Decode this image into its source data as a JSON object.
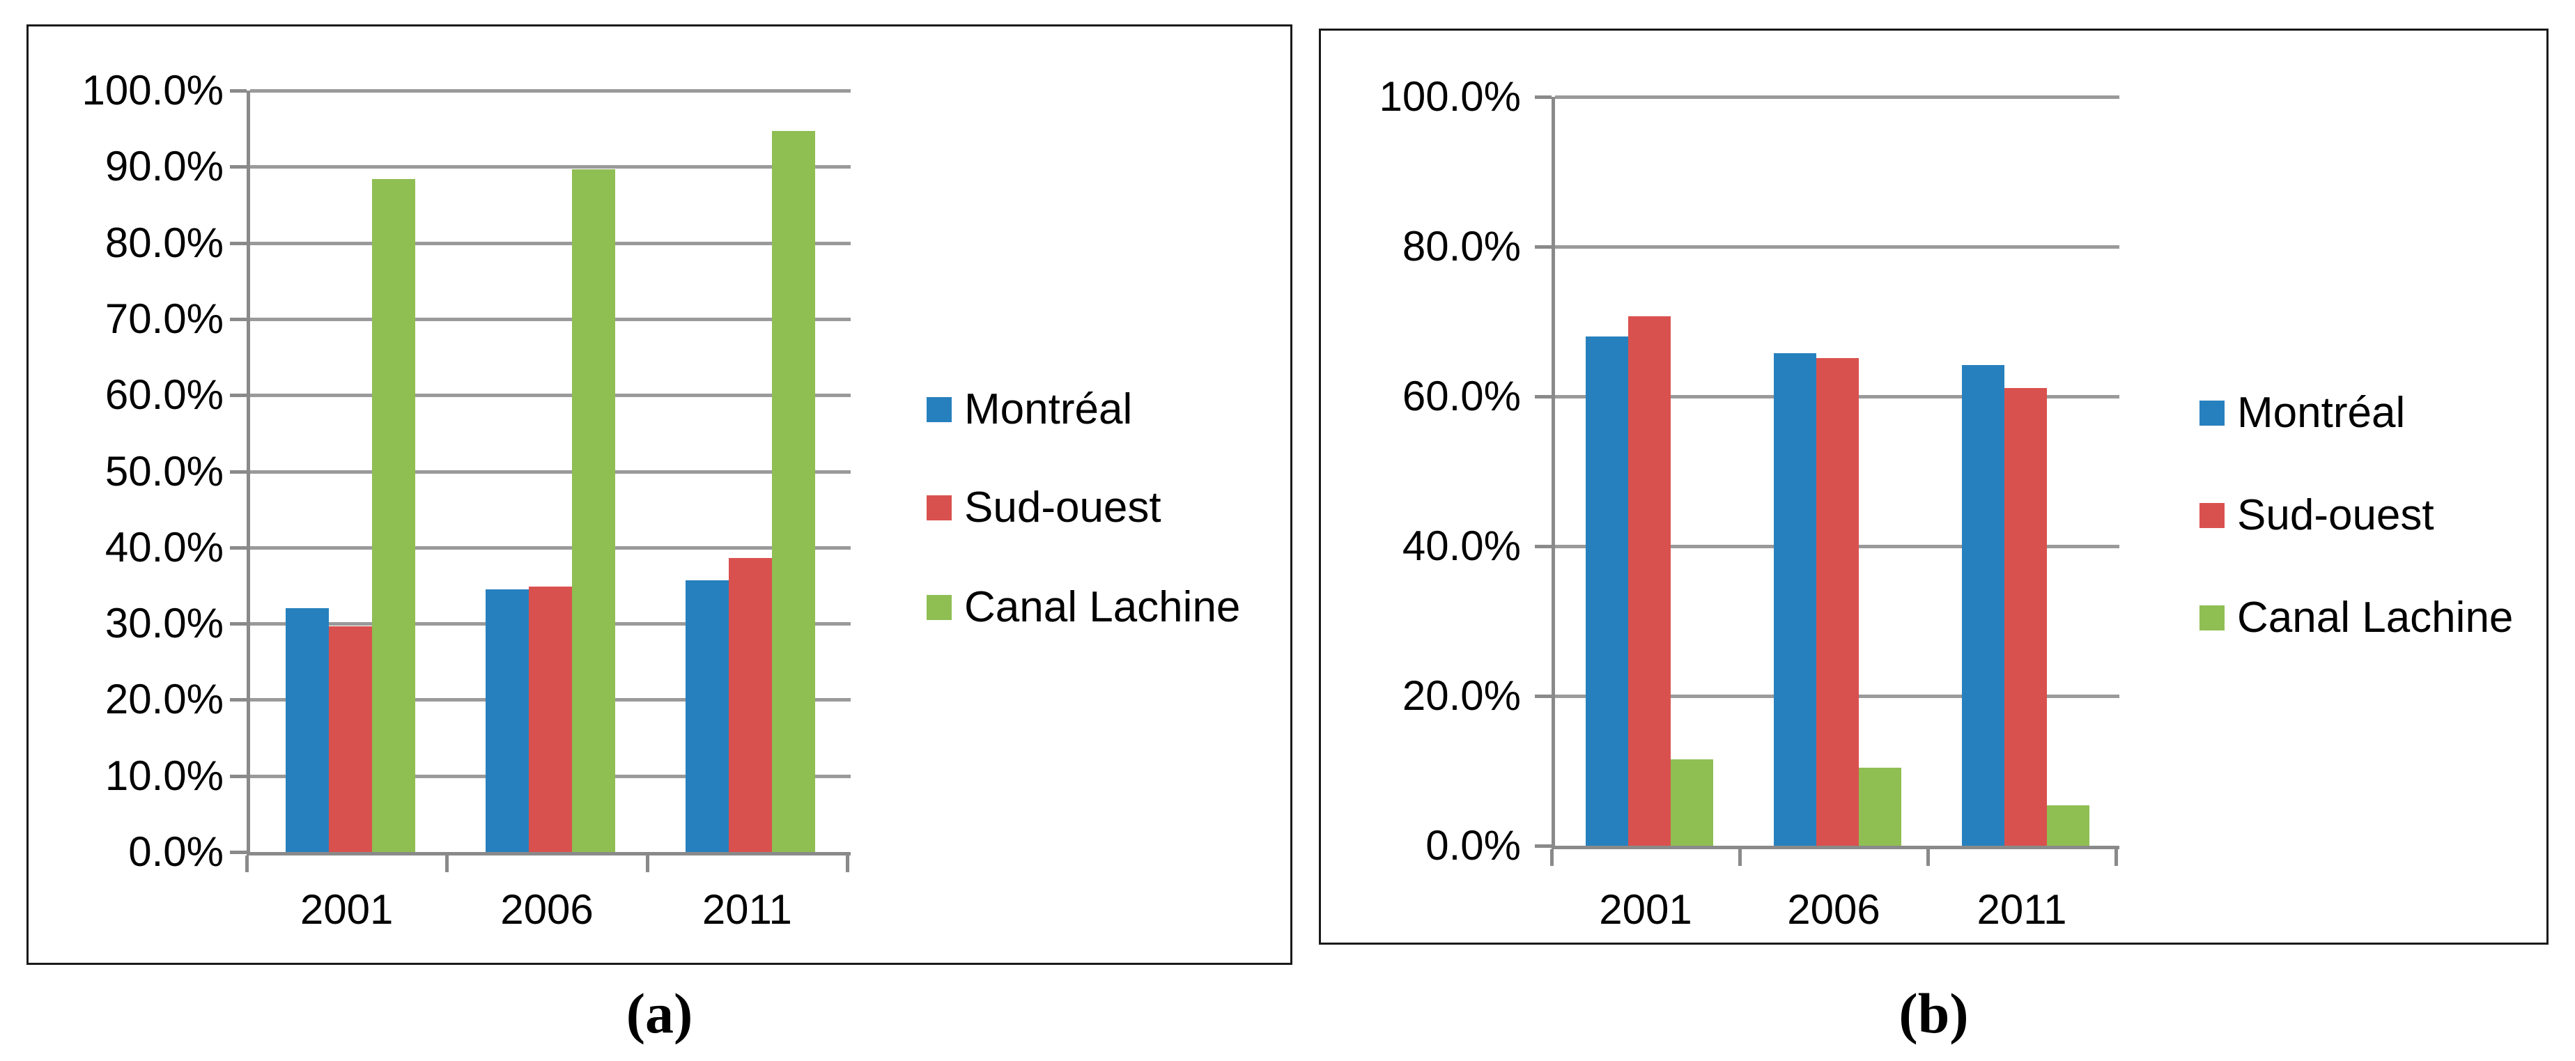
{
  "figure": {
    "background": "#ffffff",
    "text_color": "#000000",
    "panel_border_color": "#1a1a1a",
    "gridline_color": "#9a9a9a",
    "axis_color": "#8a8a8a"
  },
  "legend": {
    "position": "right",
    "items": [
      {
        "label": "Montréal",
        "color": "#2780be",
        "marker": "square-swatch-icon"
      },
      {
        "label": "Sud-ouest",
        "color": "#d9514e",
        "marker": "square-swatch-icon"
      },
      {
        "label": "Canal Lachine",
        "color": "#8fbe53",
        "marker": "square-swatch-icon"
      }
    ]
  },
  "chart_data": [
    {
      "id": "a",
      "type": "bar",
      "caption": "(a)",
      "title": "",
      "xlabel": "",
      "ylabel": "",
      "categories": [
        "2001",
        "2006",
        "2011"
      ],
      "series": [
        {
          "name": "Montréal",
          "color": "#2780be",
          "values": [
            32.0,
            34.5,
            35.7
          ]
        },
        {
          "name": "Sud-ouest",
          "color": "#d9514e",
          "values": [
            29.6,
            34.9,
            38.6
          ]
        },
        {
          "name": "Canal Lachine",
          "color": "#8fbe53",
          "values": [
            88.4,
            89.7,
            94.7
          ]
        }
      ],
      "ylim": [
        0,
        100
      ],
      "ytick_step": 10,
      "ytick_format": "percent_one_decimal",
      "ytick_labels": [
        "0.0%",
        "10.0%",
        "20.0%",
        "30.0%",
        "40.0%",
        "50.0%",
        "60.0%",
        "70.0%",
        "80.0%",
        "90.0%",
        "100.0%"
      ],
      "grid": true,
      "legend_position": "right"
    },
    {
      "id": "b",
      "type": "bar",
      "caption": "(b)",
      "title": "",
      "xlabel": "",
      "ylabel": "",
      "categories": [
        "2001",
        "2006",
        "2011"
      ],
      "series": [
        {
          "name": "Montréal",
          "color": "#2780be",
          "values": [
            68.0,
            65.8,
            64.2
          ]
        },
        {
          "name": "Sud-ouest",
          "color": "#d9514e",
          "values": [
            70.7,
            65.1,
            61.1
          ]
        },
        {
          "name": "Canal Lachine",
          "color": "#8fbe53",
          "values": [
            11.5,
            10.4,
            5.4
          ]
        }
      ],
      "ylim": [
        0,
        100
      ],
      "ytick_step": 20,
      "ytick_format": "percent_one_decimal",
      "ytick_labels": [
        "0.0%",
        "20.0%",
        "40.0%",
        "60.0%",
        "80.0%",
        "100.0%"
      ],
      "grid": true,
      "legend_position": "right"
    }
  ]
}
